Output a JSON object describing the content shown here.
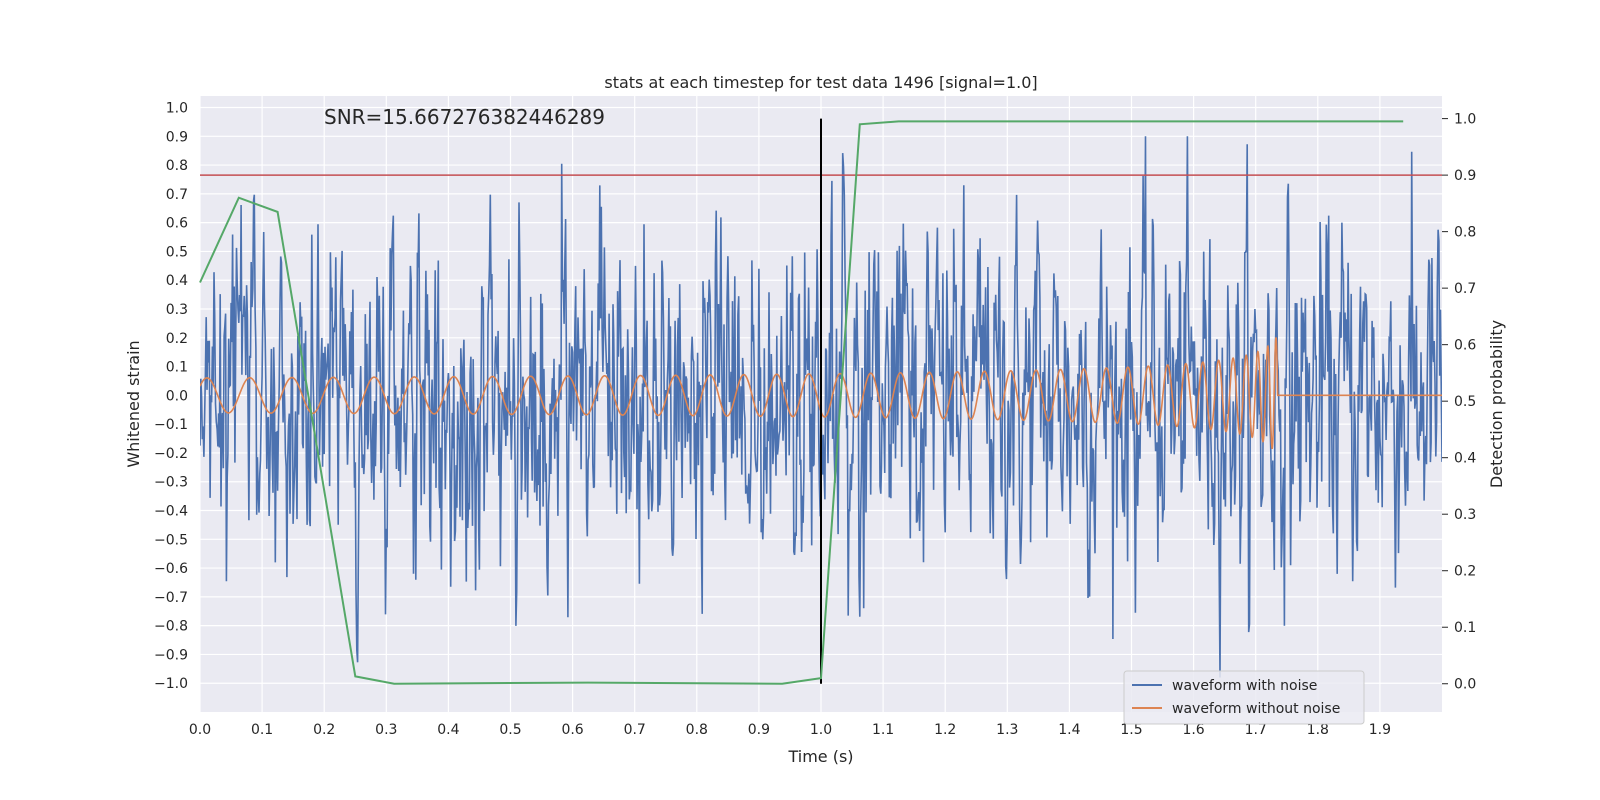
{
  "chart_data": {
    "type": "line",
    "title": "stats at each timestep for test data 1496 [signal=1.0]",
    "xlabel": "Time (s)",
    "ylabel": "Whitened strain",
    "ylabel_right": "Detection probability",
    "xlim": [
      0.0,
      2.0
    ],
    "ylim": [
      -1.1,
      1.04
    ],
    "ylim_right": [
      -0.05,
      1.04
    ],
    "x_ticks": [
      "0.0",
      "0.1",
      "0.2",
      "0.3",
      "0.4",
      "0.5",
      "0.6",
      "0.7",
      "0.8",
      "0.9",
      "1.0",
      "1.1",
      "1.2",
      "1.3",
      "1.4",
      "1.5",
      "1.6",
      "1.7",
      "1.8",
      "1.9"
    ],
    "y_ticks": [
      "1.0",
      "0.9",
      "0.8",
      "0.7",
      "0.6",
      "0.5",
      "0.4",
      "0.3",
      "0.2",
      "0.1",
      "0.0",
      "−0.1",
      "−0.2",
      "−0.3",
      "−0.4",
      "−0.5",
      "−0.6",
      "−0.7",
      "−0.8",
      "−0.9",
      "−1.0"
    ],
    "y_ticks_right": [
      "1.0",
      "0.9",
      "0.8",
      "0.7",
      "0.6",
      "0.5",
      "0.4",
      "0.3",
      "0.2",
      "0.1",
      "0.0"
    ],
    "grid": true,
    "legend_position": "lower-right",
    "annotation": "SNR=15.667276382446289",
    "series": [
      {
        "name": "waveform with noise",
        "axis": "left",
        "color": "#4c72b0",
        "kind": "noise",
        "description_range": [
          -1.0,
          0.9
        ]
      },
      {
        "name": "waveform without noise",
        "axis": "left",
        "color": "#dd8452",
        "kind": "chirp",
        "end_time": 1.735,
        "peak_amplitude": 0.4
      },
      {
        "axis": "right",
        "color": "#55a868",
        "x": [
          0.0,
          0.0625,
          0.125,
          0.25,
          0.3125,
          0.625,
          0.9375,
          1.0,
          1.0625,
          1.125,
          1.1875,
          1.25,
          1.5,
          1.75,
          1.9375
        ],
        "values": [
          0.71,
          0.86,
          0.835,
          0.013,
          0.0,
          0.002,
          0.0,
          0.01,
          0.99,
          0.995,
          0.995,
          0.995,
          0.995,
          0.995,
          0.995
        ]
      }
    ],
    "threshold": {
      "axis": "right",
      "value": 0.9,
      "color": "#c44e52"
    },
    "vline": {
      "x": 1.0,
      "color": "#000000"
    }
  }
}
